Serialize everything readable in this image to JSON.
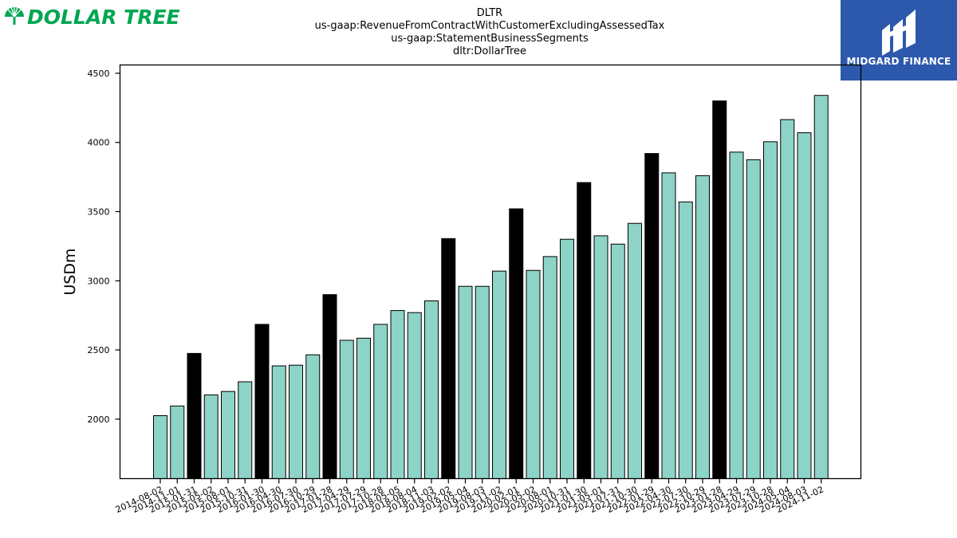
{
  "header": {
    "logo_left_text": "DOLLAR TREE",
    "logo_right_text": "MIDGARD FINANCE"
  },
  "colors": {
    "bar_default": "#8dd3c7",
    "bar_highlight": "#000000",
    "logo_left_green": "#00a651",
    "logo_right_bg": "#2d59ad"
  },
  "chart_data": {
    "type": "bar",
    "title_lines": [
      "DLTR",
      "us-gaap:RevenueFromContractWithCustomerExcludingAssessedTax",
      "us-gaap:StatementBusinessSegments",
      "dltr:DollarTree"
    ],
    "xlabel": "",
    "ylabel": "USDm",
    "ylim": [
      1570,
      4560
    ],
    "yticks": [
      2000,
      2500,
      3000,
      3500,
      4000,
      4500
    ],
    "grid": false,
    "categories": [
      "2014-08-02",
      "2014-11-01",
      "2015-01-31",
      "2015-05-02",
      "2015-08-01",
      "2015-10-31",
      "2016-01-30",
      "2016-04-30",
      "2016-07-30",
      "2016-10-29",
      "2017-01-28",
      "2017-04-29",
      "2017-07-29",
      "2017-10-28",
      "2018-05-05",
      "2018-08-04",
      "2018-11-03",
      "2019-02-02",
      "2019-05-04",
      "2019-08-03",
      "2019-11-02",
      "2020-02-01",
      "2020-05-02",
      "2020-08-01",
      "2020-10-31",
      "2021-01-30",
      "2021-05-01",
      "2021-07-31",
      "2021-10-30",
      "2022-01-29",
      "2022-04-30",
      "2022-07-30",
      "2022-10-29",
      "2023-01-28",
      "2023-04-29",
      "2023-07-29",
      "2023-10-28",
      "2024-05-04",
      "2024-08-03",
      "2024-11-02"
    ],
    "values": [
      2025,
      2095,
      2475,
      2175,
      2200,
      2270,
      2685,
      2385,
      2390,
      2465,
      2900,
      2570,
      2585,
      2685,
      2785,
      2770,
      2855,
      3305,
      2960,
      2960,
      3070,
      3520,
      3075,
      3175,
      3300,
      3710,
      3325,
      3265,
      3415,
      3920,
      3780,
      3570,
      3760,
      4300,
      3930,
      3875,
      4005,
      4165,
      4070,
      4340
    ],
    "highlighted": [
      false,
      false,
      true,
      false,
      false,
      false,
      true,
      false,
      false,
      false,
      true,
      false,
      false,
      false,
      false,
      false,
      false,
      true,
      false,
      false,
      false,
      true,
      false,
      false,
      false,
      true,
      false,
      false,
      false,
      true,
      false,
      false,
      false,
      true,
      false,
      false,
      false,
      false,
      false,
      false
    ]
  }
}
